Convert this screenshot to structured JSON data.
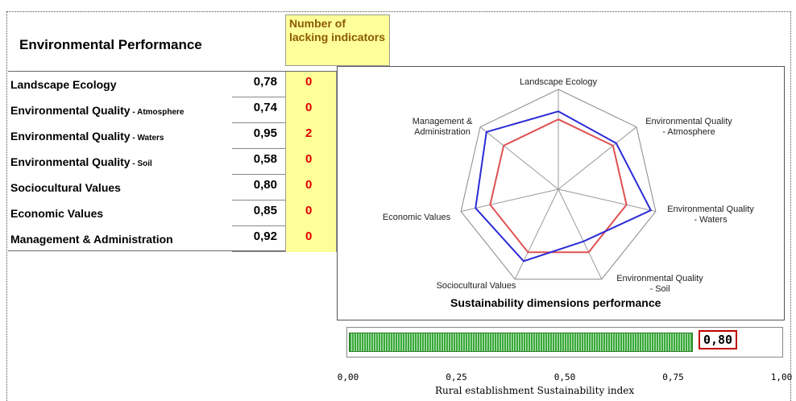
{
  "table": {
    "title": "Environmental Performance",
    "lacking_header": "Number of lacking indicators",
    "rows": [
      {
        "label": "Landscape Ecology",
        "sub": "",
        "value": "0,78",
        "lacking": "0"
      },
      {
        "label": "Environmental Quality",
        "sub": " - Atmosphere",
        "value": "0,74",
        "lacking": "0"
      },
      {
        "label": "Environmental Quality",
        "sub": " - Waters",
        "value": "0,95",
        "lacking": "2"
      },
      {
        "label": "Environmental Quality",
        "sub": " - Soil",
        "value": "0,58",
        "lacking": "0"
      },
      {
        "label": "Sociocultural Values",
        "sub": "",
        "value": "0,80",
        "lacking": "0"
      },
      {
        "label": "Economic Values",
        "sub": "",
        "value": "0,85",
        "lacking": "0"
      },
      {
        "label": "Management & Administration",
        "sub": "",
        "value": "0,92",
        "lacking": "0"
      }
    ]
  },
  "chart_data": [
    {
      "type": "radar",
      "title": "Sustainability dimensions performance",
      "axes": [
        "Landscape Ecology",
        "Environmental Quality\n- Atmosphere",
        "Environmental Quality\n- Waters",
        "Environmental Quality\n- Soil",
        "Sociocultural Values",
        "Economic Values",
        "Management &\nAdministration"
      ],
      "series": [
        {
          "color": "#2b2bd6",
          "values": [
            0.78,
            0.74,
            0.95,
            0.58,
            0.8,
            0.85,
            0.92
          ]
        },
        {
          "color": "#e05050",
          "values": [
            0.7,
            0.7,
            0.7,
            0.7,
            0.7,
            0.7,
            0.7
          ]
        }
      ],
      "range": [
        0,
        1
      ]
    },
    {
      "type": "bar",
      "orientation": "horizontal",
      "value": 0.8,
      "value_label": "0,80",
      "xlim": [
        0,
        1
      ],
      "ticks": [
        "0,00",
        "0,25",
        "0,50",
        "0,75",
        "1,00"
      ],
      "xlabel": "Rural establishment Sustainability index",
      "color": "#3aa83a"
    }
  ]
}
